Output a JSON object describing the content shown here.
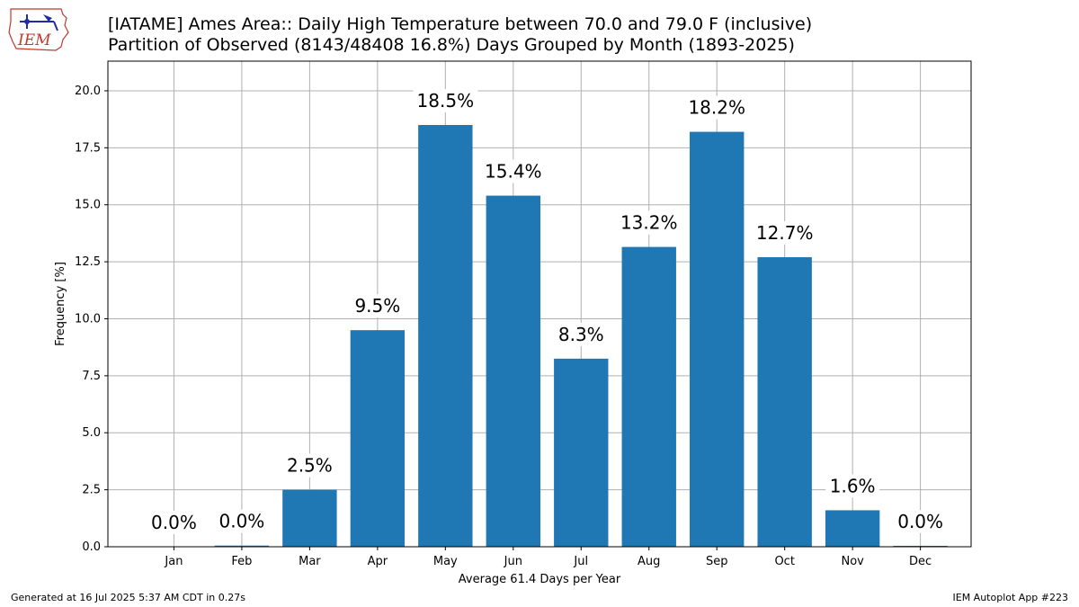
{
  "title_line1": "[IATAME] Ames Area:: Daily High Temperature between 70.0 and 79.0 F (inclusive)",
  "title_line2": "Partition of Observed (8143/48408 16.8%) Days Grouped by Month (1893-2025)",
  "logo_text": "IEM",
  "footer_left": "Generated at 16 Jul 2025 5:37 AM CDT in 0.27s",
  "footer_right": "IEM Autoplot App #223",
  "colors": {
    "bar": "#1f77b4",
    "grid": "#b0b0b0"
  },
  "chart_data": {
    "type": "bar",
    "categories": [
      "Jan",
      "Feb",
      "Mar",
      "Apr",
      "May",
      "Jun",
      "Jul",
      "Aug",
      "Sep",
      "Oct",
      "Nov",
      "Dec"
    ],
    "values": [
      0.0,
      0.05,
      2.5,
      9.5,
      18.5,
      15.4,
      8.25,
      13.15,
      18.2,
      12.7,
      1.6,
      0.04
    ],
    "data_labels": [
      "0.0%",
      "0.0%",
      "2.5%",
      "9.5%",
      "18.5%",
      "15.4%",
      "8.3%",
      "13.2%",
      "18.2%",
      "12.7%",
      "1.6%",
      "0.0%"
    ],
    "xlabel": "Average 61.4 Days per Year",
    "ylabel": "Frequency [%]",
    "ylim": [
      0,
      21.3
    ],
    "yticks": [
      0.0,
      2.5,
      5.0,
      7.5,
      10.0,
      12.5,
      15.0,
      17.5,
      20.0
    ],
    "ytick_labels": [
      "0.0",
      "2.5",
      "5.0",
      "7.5",
      "10.0",
      "12.5",
      "15.0",
      "17.5",
      "20.0"
    ],
    "grid": true
  }
}
